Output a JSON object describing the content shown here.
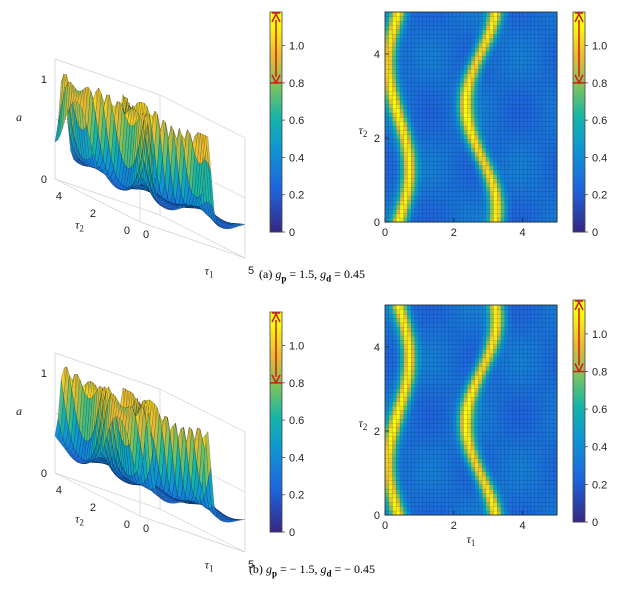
{
  "chart_data": [
    {
      "panel": "a",
      "type": "surface",
      "view": "3d",
      "xlabel": "τ1",
      "ylabel": "τ2",
      "zlabel": "a",
      "xticks": [
        0,
        5
      ],
      "yticks": [
        0,
        2,
        4
      ],
      "zticks": [
        0,
        1
      ],
      "colorbar": {
        "ticks": [
          0,
          0.2,
          0.4,
          0.6,
          0.8,
          1.0
        ],
        "arrow_from": 0.8,
        "arrow_to": 1.18,
        "arrow_color": "#d11a1a"
      },
      "params": {
        "gp": 1.5,
        "gd": 0.45
      },
      "peak_value": 1.1,
      "mean_value": 0.38
    },
    {
      "panel": "a",
      "type": "heatmap",
      "view": "top",
      "xlabel": "",
      "ylabel": "τ2",
      "xticks": [
        0,
        2,
        4
      ],
      "yticks": [
        0,
        2,
        4
      ],
      "xlim": [
        0,
        5
      ],
      "ylim": [
        0,
        5
      ],
      "colorbar": {
        "ticks": [
          0,
          0.2,
          0.4,
          0.6,
          0.8,
          1.0
        ],
        "arrow_from": 0.8,
        "arrow_to": 1.18,
        "arrow_color": "#d11a1a"
      }
    },
    {
      "panel": "b",
      "type": "surface",
      "view": "3d",
      "xlabel": "τ1",
      "ylabel": "τ2",
      "zlabel": "a",
      "xticks": [
        0,
        5
      ],
      "yticks": [
        0,
        2,
        4
      ],
      "zticks": [
        0,
        1
      ],
      "colorbar": {
        "ticks": [
          0,
          0.2,
          0.4,
          0.6,
          0.8,
          1.0
        ],
        "arrow_from": 0.8,
        "arrow_to": 1.18,
        "arrow_color": "#d11a1a"
      },
      "params": {
        "gp": -1.5,
        "gd": -0.45
      },
      "peak_value": 1.1,
      "mean_value": 0.38
    },
    {
      "panel": "b",
      "type": "heatmap",
      "view": "top",
      "xlabel": "τ1",
      "ylabel": "τ2",
      "xticks": [
        0,
        2,
        4
      ],
      "yticks": [
        0,
        2,
        4
      ],
      "xlim": [
        0,
        5
      ],
      "ylim": [
        0,
        5
      ],
      "colorbar": {
        "ticks": [
          0,
          0.2,
          0.4,
          0.6,
          0.8,
          1.0
        ],
        "arrow_from": 0.8,
        "arrow_to": 1.18,
        "arrow_color": "#d11a1a"
      }
    }
  ],
  "captions": {
    "a": {
      "prefix": "(a) ",
      "gp_sym": "g",
      "gp_sub": "p",
      "gp_val": " = 1.5, ",
      "gd_sym": "g",
      "gd_sub": "d",
      "gd_val": " = 0.45"
    },
    "b": {
      "prefix": "(b) ",
      "gp_sym": "g",
      "gp_sub": "p",
      "gp_val": " = − 1.5, ",
      "gd_sym": "g",
      "gd_sub": "d",
      "gd_val": " = − 0.45"
    }
  }
}
